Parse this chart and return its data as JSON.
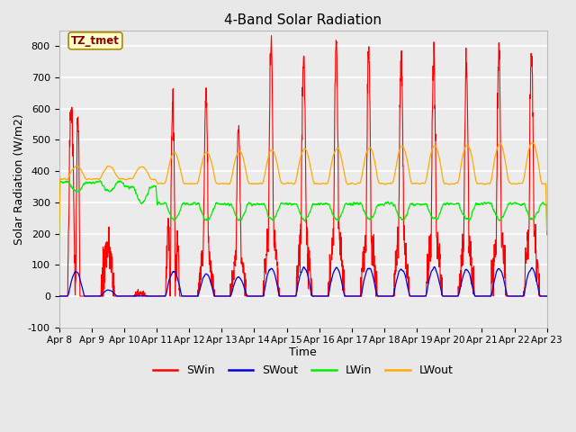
{
  "title": "4-Band Solar Radiation",
  "xlabel": "Time",
  "ylabel": "Solar Radiation (W/m2)",
  "annotation": "TZ_tmet",
  "ylim": [
    -100,
    850
  ],
  "yticks": [
    -100,
    0,
    100,
    200,
    300,
    400,
    500,
    600,
    700,
    800
  ],
  "n_days": 15,
  "xtick_labels": [
    "Apr 8",
    "Apr 9",
    "Apr 10",
    "Apr 11",
    "Apr 12",
    "Apr 13",
    "Apr 14",
    "Apr 15",
    "Apr 16",
    "Apr 17",
    "Apr 18",
    "Apr 19",
    "Apr 20",
    "Apr 21",
    "Apr 22",
    "Apr 23"
  ],
  "colors": {
    "SWin": "#ff0000",
    "SWout": "#0000dd",
    "LWin": "#00ee00",
    "LWout": "#ffaa00"
  },
  "figsize": [
    6.4,
    4.8
  ],
  "dpi": 100,
  "background_color": "#e8e8e8",
  "plot_background": "#ebebeb",
  "grid_color": "#d8d8d8"
}
